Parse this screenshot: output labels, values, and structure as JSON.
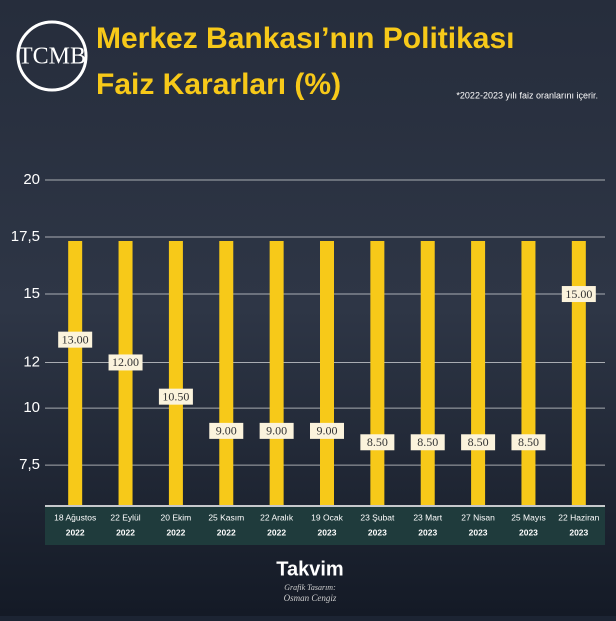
{
  "logo": "TCMB",
  "chart_data": {
    "type": "bar",
    "title": [
      "Merkez Bankası’nın Politikası",
      "Faiz Kararları (%)"
    ],
    "note": "*2022-2023 yılı faiz oranlarını içerir.",
    "categories": [
      "18 Ağustos",
      "22 Eylül",
      "20 Ekim",
      "25 Kasım",
      "22 Aralık",
      "19 Ocak",
      "23 Şubat",
      "23 Mart",
      "27 Nisan",
      "25 Mayıs",
      "22 Haziran"
    ],
    "category_years": [
      "2022",
      "2022",
      "2022",
      "2022",
      "2022",
      "2023",
      "2023",
      "2023",
      "2023",
      "2023",
      "2023"
    ],
    "values": [
      13,
      12,
      10.5,
      9,
      9,
      9,
      8.5,
      8.5,
      8.5,
      8.5,
      15
    ],
    "value_labels": [
      "13.00",
      "12.00",
      "10.50",
      "9.00",
      "9.00",
      "9.00",
      "8.50",
      "8.50",
      "8.50",
      "8.50",
      "15.00"
    ],
    "color": "#f7c919",
    "ylim": [
      5.75,
      20
    ],
    "yticks": [
      20,
      {
        "value": 17.5,
        "label": "17,5"
      },
      15,
      12,
      10,
      {
        "value": 7.5,
        "label": "7,5"
      }
    ],
    "grid": true
  },
  "footer": {
    "brand": "Takvim",
    "credit": "Grafik Tasarım:",
    "designer": "Osman Cengiz"
  }
}
